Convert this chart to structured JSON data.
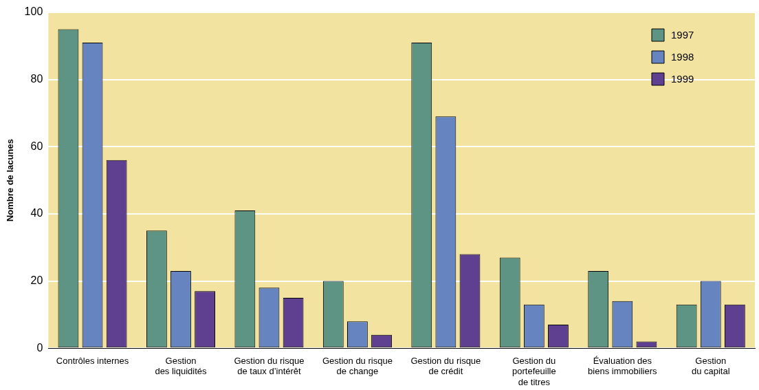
{
  "chart_data": {
    "type": "bar",
    "ylabel": "Nombre de lacunes",
    "categories": [
      "Contrôles internes",
      "Gestion\ndes liquidités",
      "Gestion du risque\nde taux d’intérêt",
      "Gestion du risque\nde change",
      "Gestion du risque\nde crédit",
      "Gestion du\nportefeuille\nde titres",
      "Évaluation des\nbiens immobiliers",
      "Gestion\ndu capital"
    ],
    "series": [
      {
        "name": "1997",
        "color": "#5e9484",
        "values": [
          95,
          35,
          41,
          20,
          91,
          27,
          23,
          13
        ]
      },
      {
        "name": "1998",
        "color": "#6684bf",
        "values": [
          91,
          23,
          18,
          8,
          69,
          13,
          14,
          20
        ]
      },
      {
        "name": "1999",
        "color": "#5f3f8f",
        "values": [
          56,
          17,
          15,
          4,
          28,
          7,
          2,
          13
        ]
      }
    ],
    "ylim": [
      0,
      100
    ],
    "yticks": [
      0,
      20,
      40,
      60,
      80,
      100
    ],
    "grid": "y",
    "legend": "top right"
  }
}
